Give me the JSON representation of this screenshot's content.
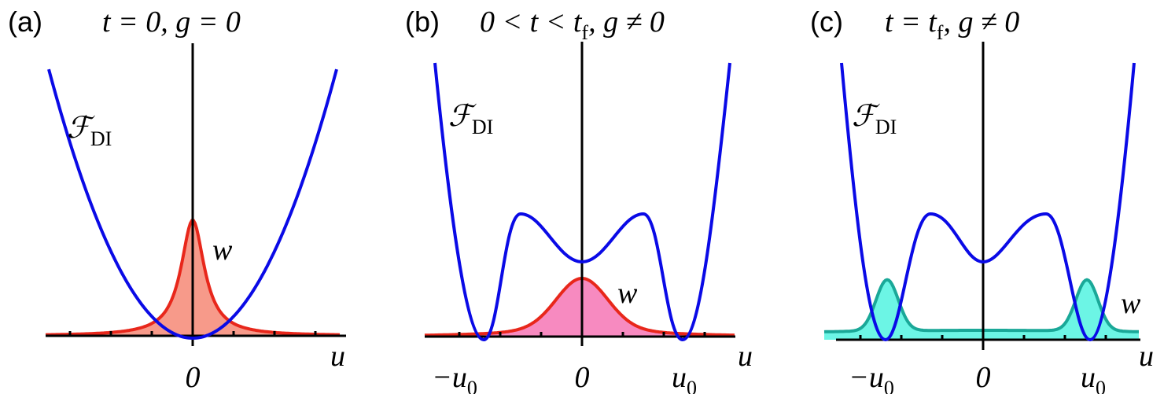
{
  "panels": [
    {
      "label": "(a)",
      "title": [
        {
          "text": "t = 0,  g = 0"
        }
      ],
      "curve_label": [
        {
          "text": "ℱ"
        },
        {
          "sub": "DI"
        }
      ],
      "density_label": "w",
      "axis_label": "u",
      "ticks": [
        [
          {
            "text": "0"
          }
        ]
      ]
    },
    {
      "label": "(b)",
      "title": [
        {
          "text": "0 < t < t"
        },
        {
          "sub": "f"
        },
        {
          "text": ",  g ≠ 0"
        }
      ],
      "curve_label": [
        {
          "text": "ℱ"
        },
        {
          "sub": "DI"
        }
      ],
      "density_label": "w",
      "axis_label": "u",
      "ticks": [
        [
          {
            "text": "−u"
          },
          {
            "sub": "0"
          }
        ],
        [
          {
            "text": "0"
          }
        ],
        [
          {
            "text": "u"
          },
          {
            "sub": "0"
          }
        ]
      ]
    },
    {
      "label": "(c)",
      "title": [
        {
          "text": "t = t"
        },
        {
          "sub": "f"
        },
        {
          "text": ",  g ≠ 0"
        }
      ],
      "curve_label": [
        {
          "text": "ℱ"
        },
        {
          "sub": "DI"
        }
      ],
      "density_label": "w",
      "axis_label": "u",
      "ticks": [
        [
          {
            "text": "−u"
          },
          {
            "sub": "0"
          }
        ],
        [
          {
            "text": "0"
          }
        ],
        [
          {
            "text": "u"
          },
          {
            "sub": "0"
          }
        ]
      ]
    }
  ]
}
